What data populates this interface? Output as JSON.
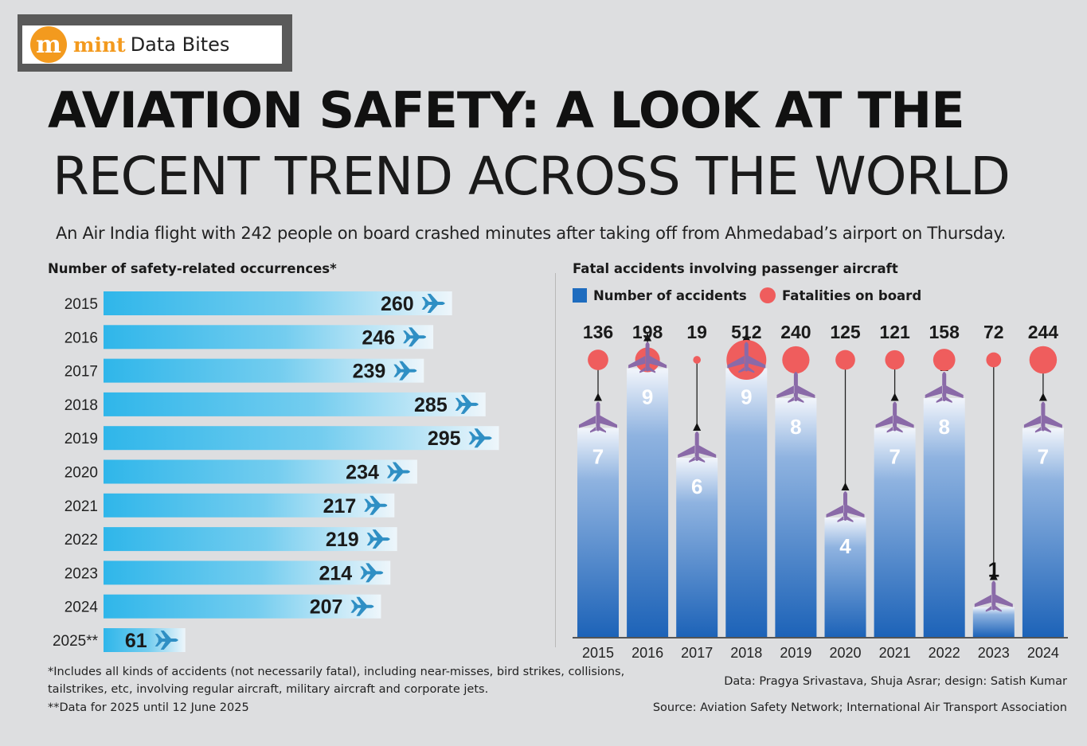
{
  "brand": {
    "logo_letter": "m",
    "name": "mint",
    "section": "Data Bites"
  },
  "headline": {
    "line1": "AVIATION SAFETY: A LOOK AT THE",
    "line2": "RECENT TREND ACROSS THE WORLD"
  },
  "subtitle": "An Air India flight with 242 people on board crashed minutes after taking off from Ahmedabad’s airport on Thursday.",
  "colors": {
    "bar_left": "#2fb6ea",
    "bar_right": "#eef6fb",
    "column_top": "#f2f5fb",
    "column_bottom": "#1d63b8",
    "fatality_dot": "#ef5d5d",
    "plane": "#8a6aa8",
    "bar_plane": "#2f8fc4"
  },
  "chart_data": [
    {
      "type": "bar",
      "orientation": "horizontal",
      "title": "Number of safety-related occurrences*",
      "categories": [
        "2015",
        "2016",
        "2017",
        "2018",
        "2019",
        "2020",
        "2021",
        "2022",
        "2023",
        "2024",
        "2025**"
      ],
      "values": [
        260,
        246,
        239,
        285,
        295,
        234,
        217,
        219,
        214,
        207,
        61
      ],
      "xlim": [
        0,
        300
      ]
    },
    {
      "type": "bar",
      "title": "Fatal accidents involving passenger aircraft",
      "legend": [
        "Number of accidents",
        "Fatalities on board"
      ],
      "categories": [
        "2015",
        "2016",
        "2017",
        "2018",
        "2019",
        "2020",
        "2021",
        "2022",
        "2023",
        "2024"
      ],
      "series": [
        {
          "name": "Number of accidents",
          "values": [
            7,
            9,
            6,
            9,
            8,
            4,
            7,
            8,
            1,
            7
          ]
        },
        {
          "name": "Fatalities on board",
          "values": [
            136,
            198,
            19,
            512,
            240,
            125,
            121,
            158,
            72,
            244
          ]
        }
      ],
      "ylim": [
        0,
        10
      ]
    }
  ],
  "footnotes": {
    "note1_line1": "*Includes all kinds of accidents (not necessarily fatal), including near-misses, bird strikes, collisions,",
    "note1_line2": "tailstrikes, etc, involving regular aircraft, military aircraft and corporate jets.",
    "note2": "**Data for 2025 until 12 June 2025"
  },
  "credits": {
    "data": "Data: Pragya Srivastava, Shuja Asrar; design: Satish Kumar",
    "source": "Source: Aviation Safety Network; International Air Transport Association"
  }
}
